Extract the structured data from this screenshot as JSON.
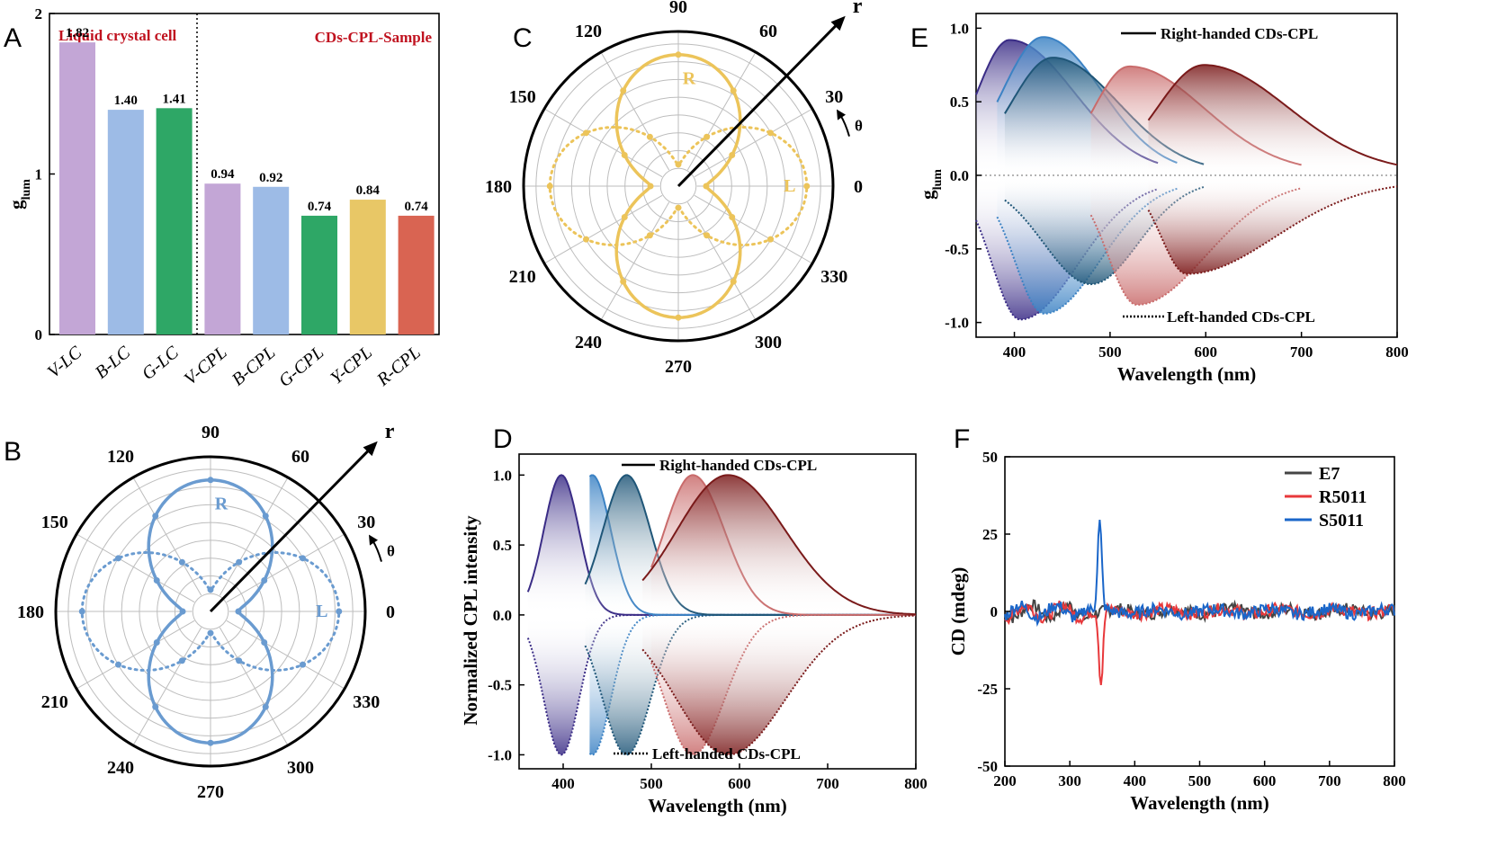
{
  "chart_data": [
    {
      "panel": "A",
      "type": "bar",
      "header_left": "Liquid crystal cell",
      "header_right": "CDs-CPL-Sample",
      "ylabel": "g",
      "ylabel_sub": "lum",
      "ylim": [
        0,
        2
      ],
      "yticks": [
        "0",
        "1",
        "2"
      ],
      "categories": [
        "V-LC",
        "B-LC",
        "G-LC",
        "V-CPL",
        "B-CPL",
        "G-CPL",
        "Y-CPL",
        "R-CPL"
      ],
      "values": [
        1.82,
        1.4,
        1.41,
        0.94,
        0.92,
        0.74,
        0.84,
        0.74
      ],
      "value_labels": [
        "1.82",
        "1.40",
        "1.41",
        "0.94",
        "0.92",
        "0.74",
        "0.84",
        "0.74"
      ],
      "colors": [
        "#c3a6d6",
        "#9dbbe6",
        "#2ea766",
        "#c3a6d6",
        "#9dbbe6",
        "#2ea766",
        "#e8c766",
        "#d96452"
      ]
    },
    {
      "panel": "B",
      "type": "polar",
      "color": "#6a9bd0",
      "angle_labels": [
        "0",
        "30",
        "60",
        "90",
        "120",
        "150",
        "180",
        "210",
        "240",
        "270",
        "300",
        "330"
      ],
      "curve_R": "R",
      "curve_L": "L",
      "radial_label": "r",
      "angle_symbol": "θ",
      "R_peak_fraction": 0.85,
      "L_peak_fraction": 0.83
    },
    {
      "panel": "C",
      "type": "polar",
      "color": "#ecc45a",
      "angle_labels": [
        "0",
        "30",
        "60",
        "90",
        "120",
        "150",
        "180",
        "210",
        "240",
        "270",
        "300",
        "330"
      ],
      "curve_R": "R",
      "curve_L": "L",
      "radial_label": "r",
      "angle_symbol": "θ",
      "R_peak_fraction": 0.85,
      "L_peak_fraction": 0.83
    },
    {
      "panel": "D",
      "type": "area",
      "xlabel": "Wavelength (nm)",
      "ylabel": "Normalized CPL intensity",
      "xlim": [
        350,
        800
      ],
      "ylim": [
        -1.1,
        1.15
      ],
      "xticks": [
        "400",
        "500",
        "600",
        "700",
        "800"
      ],
      "yticks": [
        "-1.0",
        "-0.5",
        "0.0",
        "0.5",
        "1.0"
      ],
      "legend_right": "Right-handed CDs-CPL",
      "legend_left": "Left-handed CDs-CPL",
      "series": [
        {
          "name": "violet",
          "peak": 398,
          "width": 20,
          "color": "#3a2c86",
          "start": 360
        },
        {
          "name": "blue",
          "peak": 433,
          "width": 21,
          "color": "#3b82c4",
          "start": 430
        },
        {
          "name": "teal",
          "peak": 472,
          "width": 27,
          "color": "#1f5678",
          "start": 425
        },
        {
          "name": "pink",
          "peak": 547,
          "width": 32,
          "color": "#c96b6b",
          "start": 500
        },
        {
          "name": "darkred",
          "peak": 587,
          "width": 58,
          "color": "#7a1a1a",
          "start": 490
        }
      ]
    },
    {
      "panel": "E",
      "type": "area",
      "xlabel": "Wavelength (nm)",
      "ylabel": "g",
      "ylabel_sub": "lum",
      "xlim": [
        360,
        800
      ],
      "ylim": [
        -1.1,
        1.1
      ],
      "xticks": [
        "400",
        "500",
        "600",
        "700",
        "800"
      ],
      "yticks": [
        "-1.0",
        "-0.5",
        "0.0",
        "0.5",
        "1.0"
      ],
      "legend_right": "Right-handed CDs-CPL",
      "legend_left": "Left-handed CDs-CPL",
      "series": [
        {
          "name": "violet",
          "start": 360,
          "end": 550,
          "peak": 395,
          "amp": 0.9,
          "color": "#3a2c86",
          "neg_peak": 406,
          "neg_amp": 0.94
        },
        {
          "name": "blue",
          "start": 382,
          "end": 570,
          "peak": 430,
          "amp": 0.92,
          "color": "#3b82c4",
          "neg_peak": 431,
          "neg_amp": 0.9
        },
        {
          "name": "teal",
          "start": 390,
          "end": 598,
          "peak": 440,
          "amp": 0.78,
          "color": "#1f5678",
          "neg_peak": 480,
          "neg_amp": 0.7
        },
        {
          "name": "pink",
          "start": 480,
          "end": 700,
          "peak": 520,
          "amp": 0.72,
          "color": "#c96b6b",
          "neg_peak": 528,
          "neg_amp": 0.84
        },
        {
          "name": "darkred",
          "start": 540,
          "end": 800,
          "peak": 598,
          "amp": 0.73,
          "color": "#7a1a1a",
          "neg_peak": 580,
          "neg_amp": 0.63
        }
      ]
    },
    {
      "panel": "F",
      "type": "line",
      "xlabel": "Wavelength (nm)",
      "ylabel": "CD (mdeg)",
      "xlim": [
        200,
        800
      ],
      "ylim": [
        -50,
        50
      ],
      "xticks": [
        "200",
        "300",
        "400",
        "500",
        "600",
        "700",
        "800"
      ],
      "yticks": [
        "-50",
        "-25",
        "0",
        "25",
        "50"
      ],
      "series": [
        {
          "name": "E7",
          "color": "#444444",
          "peak_x": 348,
          "peak_y": 0
        },
        {
          "name": "R5011",
          "color": "#e8383b",
          "peak_x": 348,
          "peak_y": -24
        },
        {
          "name": "S5011",
          "color": "#1a66c9",
          "peak_x": 346,
          "peak_y": 28
        }
      ]
    }
  ],
  "panel_letters": [
    "A",
    "B",
    "C",
    "D",
    "E",
    "F"
  ]
}
